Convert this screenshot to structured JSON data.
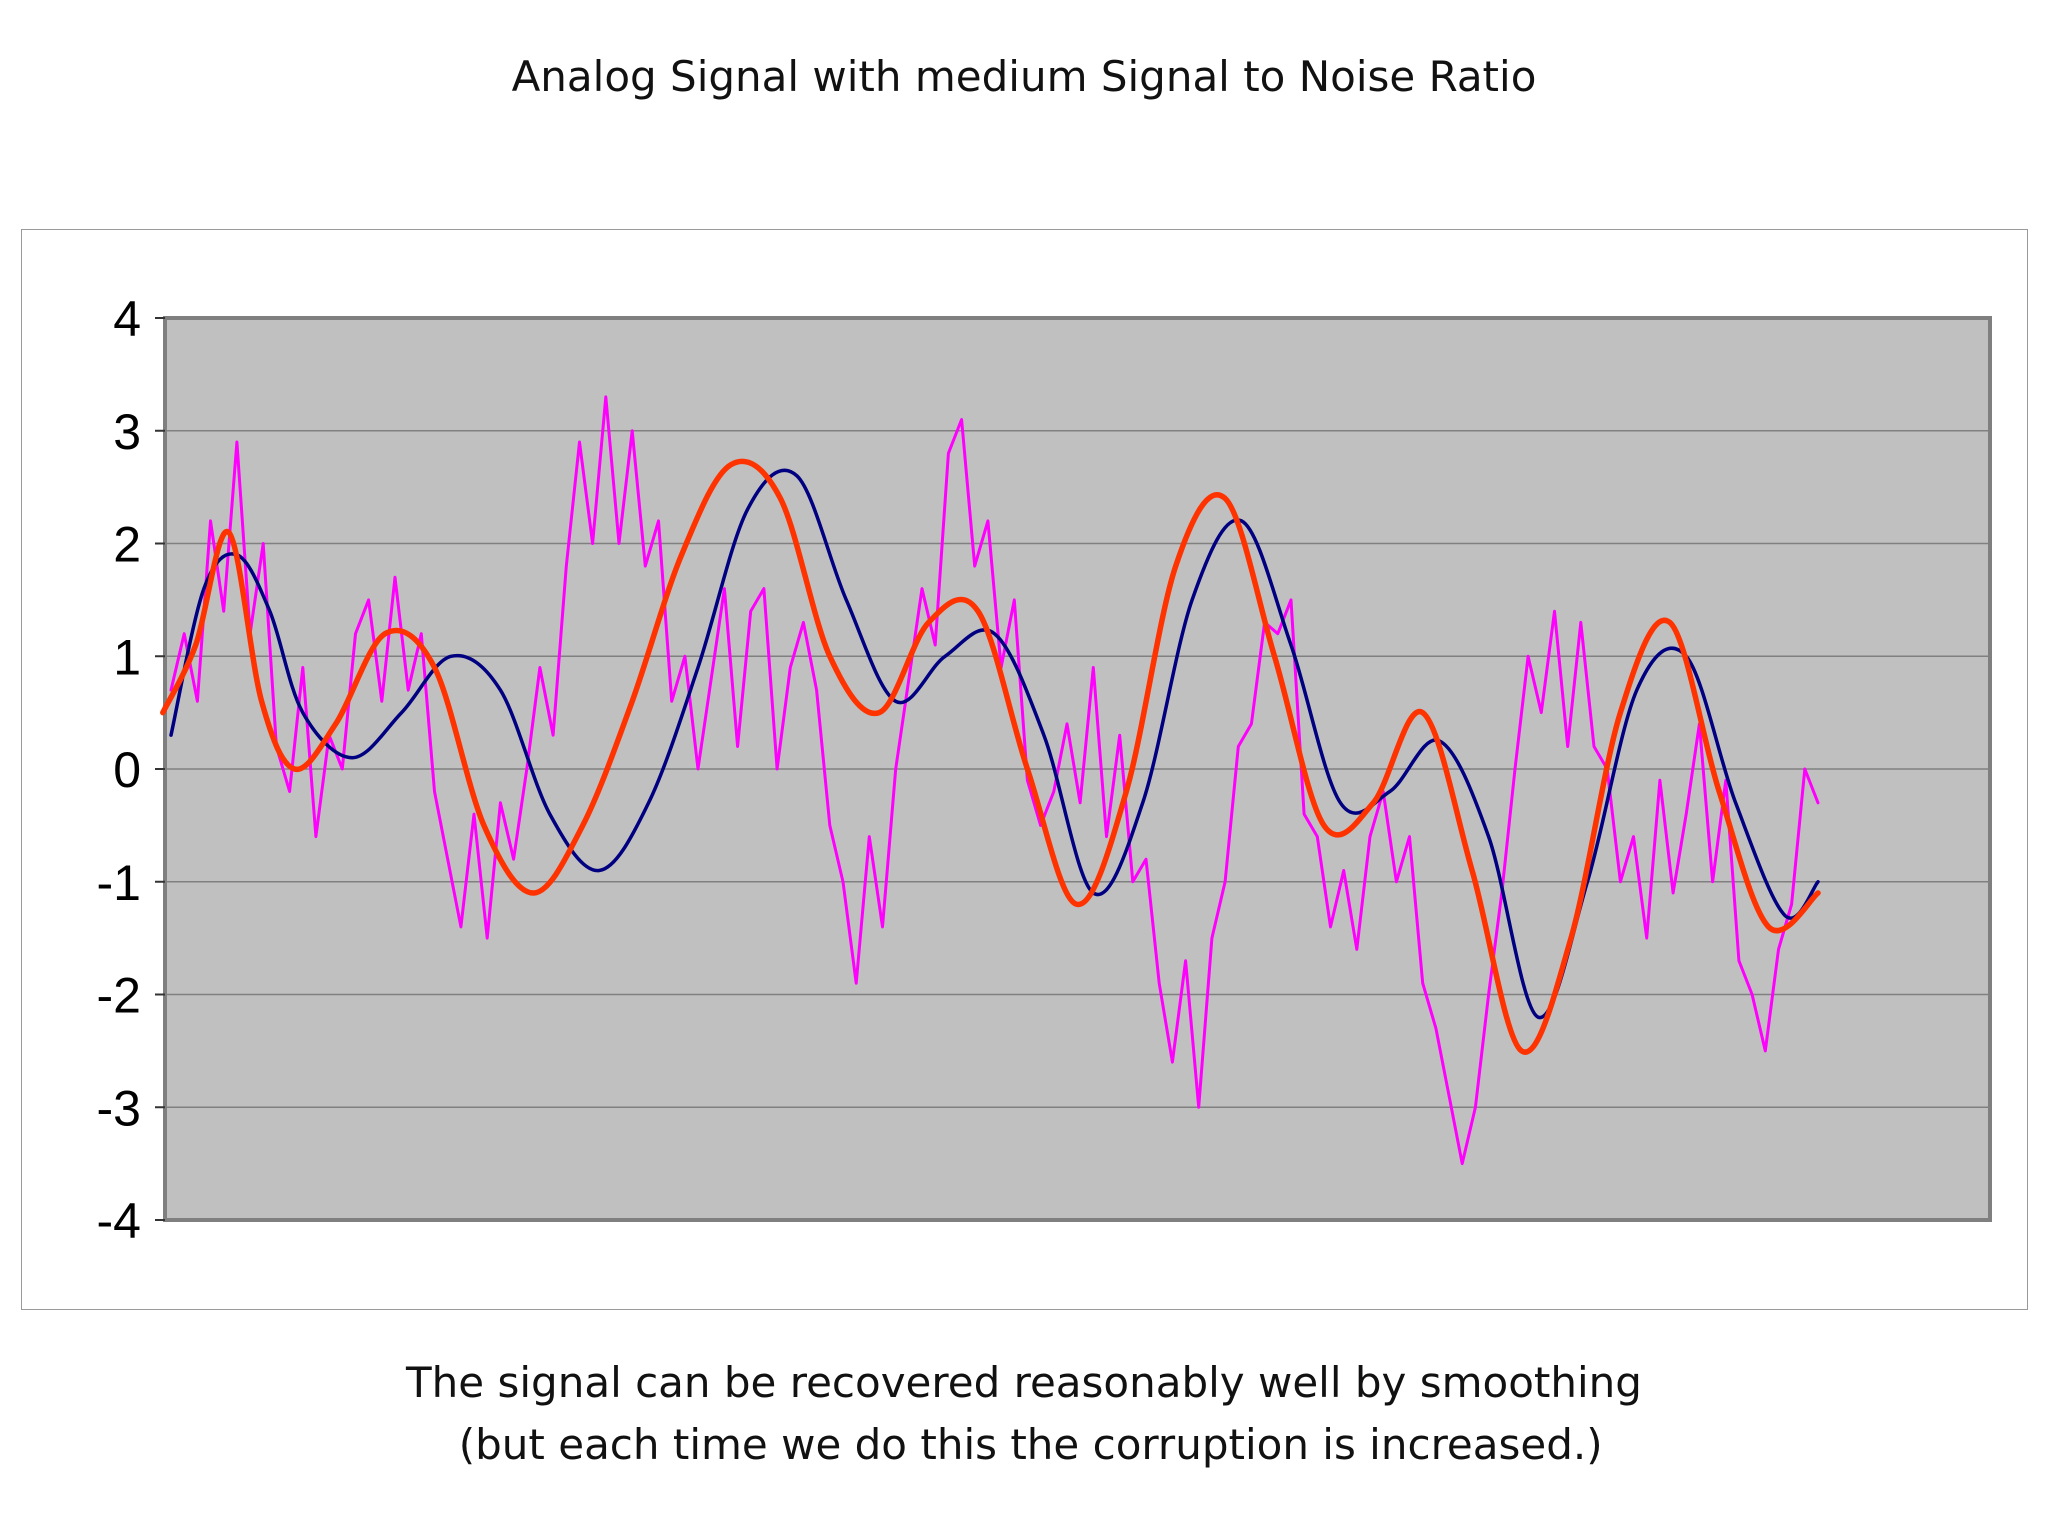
{
  "title": "Analog Signal with medium Signal to Noise Ratio",
  "caption": {
    "line1": "The signal can be recovered reasonably well by smoothing",
    "line2": " (but each time we do this the corruption is increased.)"
  },
  "colors": {
    "plot_bg": "#c0c0c0",
    "gridline": "#808080",
    "noisy": "#ff00ff",
    "original": "#000080",
    "smoothed": "#ff3300"
  },
  "chart_data": {
    "type": "line",
    "ylim": [
      -4,
      4
    ],
    "yticks": [
      "4",
      "3",
      "2",
      "1",
      "0",
      "-1",
      "-2",
      "-3",
      "-4"
    ],
    "grid": true,
    "legend": "none",
    "x_range": [
      0,
      1000
    ],
    "series": [
      {
        "key": "original",
        "x": [
          0,
          20,
          40,
          60,
          80,
          110,
          140,
          170,
          200,
          230,
          260,
          290,
          320,
          350,
          380,
          410,
          440,
          470,
          500,
          530,
          560,
          590,
          620,
          650,
          680,
          710,
          740,
          770,
          800,
          830,
          860,
          890,
          920,
          950,
          980,
          1000
        ],
        "values": [
          0.3,
          1.6,
          1.9,
          1.4,
          0.5,
          0.1,
          0.5,
          1.0,
          0.7,
          -0.4,
          -0.9,
          -0.3,
          0.9,
          2.3,
          2.6,
          1.5,
          0.6,
          1.0,
          1.2,
          0.3,
          -1.1,
          -0.3,
          1.5,
          2.2,
          1.1,
          -0.3,
          -0.2,
          0.25,
          -0.6,
          -2.2,
          -1.0,
          0.7,
          1.0,
          -0.3,
          -1.3,
          -1.0
        ]
      },
      {
        "key": "smoothed",
        "x": [
          -5,
          15,
          35,
          55,
          75,
          100,
          130,
          160,
          190,
          220,
          250,
          280,
          310,
          340,
          370,
          400,
          430,
          460,
          490,
          520,
          550,
          580,
          610,
          640,
          670,
          700,
          730,
          760,
          790,
          820,
          850,
          880,
          910,
          940,
          970,
          1000
        ],
        "values": [
          0.5,
          1.1,
          2.1,
          0.6,
          0.0,
          0.4,
          1.2,
          0.9,
          -0.5,
          -1.1,
          -0.5,
          0.6,
          1.9,
          2.7,
          2.4,
          1.0,
          0.5,
          1.3,
          1.4,
          0.0,
          -1.2,
          -0.2,
          1.8,
          2.4,
          1.0,
          -0.5,
          -0.3,
          0.5,
          -0.9,
          -2.5,
          -1.5,
          0.5,
          1.3,
          -0.2,
          -1.4,
          -1.1
        ]
      },
      {
        "key": "noisy",
        "x": [
          0,
          8,
          16,
          24,
          32,
          40,
          48,
          56,
          64,
          72,
          80,
          88,
          96,
          104,
          112,
          120,
          128,
          136,
          144,
          152,
          160,
          168,
          176,
          184,
          192,
          200,
          208,
          216,
          224,
          232,
          240,
          248,
          256,
          264,
          272,
          280,
          288,
          296,
          304,
          312,
          320,
          328,
          336,
          344,
          352,
          360,
          368,
          376,
          384,
          392,
          400,
          408,
          416,
          424,
          432,
          440,
          448,
          456,
          464,
          472,
          480,
          488,
          496,
          504,
          512,
          520,
          528,
          536,
          544,
          552,
          560,
          568,
          576,
          584,
          592,
          600,
          608,
          616,
          624,
          632,
          640,
          648,
          656,
          664,
          672,
          680,
          688,
          696,
          704,
          712,
          720,
          728,
          736,
          744,
          752,
          760,
          768,
          776,
          784,
          792,
          800,
          808,
          816,
          824,
          832,
          840,
          848,
          856,
          864,
          872,
          880,
          888,
          896,
          904,
          912,
          920,
          928,
          936,
          944,
          952,
          960,
          968,
          976,
          984,
          992,
          1000
        ],
        "values": [
          0.7,
          1.2,
          0.6,
          2.2,
          1.4,
          2.9,
          1.2,
          2.0,
          0.2,
          -0.2,
          0.9,
          -0.6,
          0.3,
          0.0,
          1.2,
          1.5,
          0.6,
          1.7,
          0.7,
          1.2,
          -0.2,
          -0.8,
          -1.4,
          -0.4,
          -1.5,
          -0.3,
          -0.8,
          0.0,
          0.9,
          0.3,
          1.8,
          2.9,
          2.0,
          3.3,
          2.0,
          3.0,
          1.8,
          2.2,
          0.6,
          1.0,
          0.0,
          0.8,
          1.6,
          0.2,
          1.4,
          1.6,
          0.0,
          0.9,
          1.3,
          0.7,
          -0.5,
          -1.0,
          -1.9,
          -0.6,
          -1.4,
          0.0,
          0.8,
          1.6,
          1.1,
          2.8,
          3.1,
          1.8,
          2.2,
          0.9,
          1.5,
          -0.1,
          -0.5,
          -0.2,
          0.4,
          -0.3,
          0.9,
          -0.6,
          0.3,
          -1.0,
          -0.8,
          -1.9,
          -2.6,
          -1.7,
          -3.0,
          -1.5,
          -1.0,
          0.2,
          0.4,
          1.3,
          1.2,
          1.5,
          -0.4,
          -0.6,
          -1.4,
          -0.9,
          -1.6,
          -0.6,
          -0.2,
          -1.0,
          -0.6,
          -1.9,
          -2.3,
          -2.9,
          -3.5,
          -3.0,
          -2.0,
          -1.1,
          0.0,
          1.0,
          0.5,
          1.4,
          0.2,
          1.3,
          0.2,
          0.0,
          -1.0,
          -0.6,
          -1.5,
          -0.1,
          -1.1,
          -0.4,
          0.4,
          -1.0,
          -0.1,
          -1.7,
          -2.0,
          -2.5,
          -1.6,
          -1.2,
          0.0,
          -0.3
        ]
      }
    ]
  }
}
